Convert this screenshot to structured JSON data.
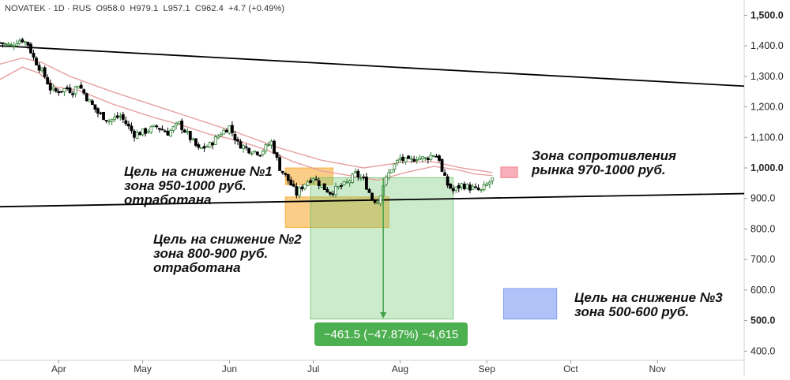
{
  "header": {
    "symbol": "NOVATEK",
    "interval": "1D",
    "exchange": "RUS",
    "open": "O958.0",
    "high": "H979.1",
    "low": "L957.1",
    "close": "C962.4",
    "change": "+4.7 (+0.49%)"
  },
  "annotations": {
    "target1": [
      "Цель на снижение №1",
      "зона 950-1000 руб.",
      "отработана"
    ],
    "target2": [
      "Цель на снижение №2",
      "зона 800-900 руб.",
      "отработана"
    ],
    "target3": [
      "Цель на снижение №3",
      "зона 500-600 руб."
    ],
    "resistance": [
      "Зона сопротивления",
      "рынка 970-1000 руб."
    ]
  },
  "measure_label": "−461.5 (−47.87%) −4,615",
  "colors": {
    "up": "#2e7d32",
    "down": "#000000",
    "ma": "#e8a0a0",
    "trend": "#000000",
    "orange_zone": "#f5a623",
    "green_zone": "#6cc46c",
    "blue_zone": "#6f8ff0",
    "red_zone": "#f07080",
    "measure": "#4caf50",
    "axis_text": "#222222",
    "month_text": "#333333"
  },
  "chart_data": {
    "type": "candlestick",
    "ylim": [
      370,
      1550
    ],
    "yticks": [
      400,
      500,
      600,
      700,
      800,
      900,
      1000,
      1100,
      1200,
      1300,
      1400,
      1500
    ],
    "ytick_labels": [
      "400.0",
      "500.0",
      "600.0",
      "700.0",
      "800.0",
      "900.0",
      "1,000.0",
      "1,100.0",
      "1,200.0",
      "1,300.0",
      "1,400.0",
      "1,500.0"
    ],
    "bold_ticks": [
      500,
      1000,
      1500
    ],
    "x_months": [
      "Apr",
      "May",
      "Jun",
      "Jul",
      "Aug",
      "Sep",
      "Oct",
      "Nov"
    ],
    "x_month_start_day": [
      21,
      51,
      82,
      112,
      143,
      174,
      204,
      235
    ],
    "x_range_days": [
      0,
      266
    ],
    "price_anchors": [
      [
        0,
        1410
      ],
      [
        4,
        1400
      ],
      [
        6,
        1415
      ],
      [
        8,
        1420
      ],
      [
        10,
        1405
      ],
      [
        12,
        1360
      ],
      [
        16,
        1300
      ],
      [
        18,
        1260
      ],
      [
        20,
        1250
      ],
      [
        24,
        1260
      ],
      [
        26,
        1250
      ],
      [
        28,
        1275
      ],
      [
        31,
        1230
      ],
      [
        35,
        1180
      ],
      [
        39,
        1155
      ],
      [
        43,
        1170
      ],
      [
        48,
        1110
      ],
      [
        52,
        1120
      ],
      [
        56,
        1135
      ],
      [
        60,
        1115
      ],
      [
        64,
        1145
      ],
      [
        67,
        1110
      ],
      [
        71,
        1060
      ],
      [
        75,
        1075
      ],
      [
        79,
        1115
      ],
      [
        82,
        1135
      ],
      [
        85,
        1080
      ],
      [
        89,
        1060
      ],
      [
        93,
        1050
      ],
      [
        97,
        1085
      ],
      [
        100,
        1000
      ],
      [
        103,
        960
      ],
      [
        106,
        915
      ],
      [
        109,
        950
      ],
      [
        112,
        970
      ],
      [
        115,
        940
      ],
      [
        118,
        920
      ],
      [
        121,
        935
      ],
      [
        124,
        950
      ],
      [
        127,
        980
      ],
      [
        130,
        960
      ],
      [
        133,
        900
      ],
      [
        135,
        890
      ],
      [
        137,
        945
      ],
      [
        140,
        1000
      ],
      [
        143,
        1030
      ],
      [
        146,
        1020
      ],
      [
        149,
        1035
      ],
      [
        152,
        1030
      ],
      [
        155,
        1045
      ],
      [
        157,
        1030
      ],
      [
        158,
        985
      ],
      [
        160,
        945
      ],
      [
        162,
        925
      ],
      [
        165,
        945
      ],
      [
        168,
        935
      ],
      [
        172,
        925
      ],
      [
        174,
        945
      ],
      [
        176,
        962
      ]
    ],
    "ma_fast": [
      [
        0,
        1290
      ],
      [
        8,
        1330
      ],
      [
        14,
        1310
      ],
      [
        20,
        1265
      ],
      [
        28,
        1255
      ],
      [
        40,
        1210
      ],
      [
        55,
        1165
      ],
      [
        65,
        1140
      ],
      [
        75,
        1110
      ],
      [
        85,
        1090
      ],
      [
        95,
        1060
      ],
      [
        105,
        1020
      ],
      [
        115,
        990
      ],
      [
        125,
        975
      ],
      [
        135,
        960
      ],
      [
        145,
        985
      ],
      [
        155,
        1005
      ],
      [
        163,
        995
      ],
      [
        170,
        980
      ],
      [
        176,
        975
      ]
    ],
    "ma_slow": [
      [
        0,
        1340
      ],
      [
        8,
        1360
      ],
      [
        15,
        1345
      ],
      [
        25,
        1300
      ],
      [
        40,
        1250
      ],
      [
        55,
        1205
      ],
      [
        70,
        1160
      ],
      [
        85,
        1115
      ],
      [
        100,
        1065
      ],
      [
        115,
        1025
      ],
      [
        130,
        1000
      ],
      [
        145,
        1020
      ],
      [
        155,
        1020
      ],
      [
        165,
        1000
      ],
      [
        176,
        985
      ]
    ],
    "trendlines": [
      {
        "name": "upper",
        "from": [
          0,
          1400
        ],
        "to": [
          266,
          1268
        ]
      },
      {
        "name": "lower",
        "from": [
          0,
          873
        ],
        "to": [
          266,
          916
        ]
      }
    ],
    "zones": [
      {
        "name": "target1-zone",
        "x": [
          102,
          119
        ],
        "y": [
          945,
          1000
        ],
        "color": "#f5a623"
      },
      {
        "name": "target2-zone",
        "x": [
          102,
          139
        ],
        "y": [
          805,
          905
        ],
        "color": "#f5a623"
      },
      {
        "name": "measure-zone",
        "x": [
          111,
          162
        ],
        "y": [
          505,
          968
        ],
        "color": "#6cc46c"
      },
      {
        "name": "target3-zone",
        "x": [
          180,
          199
        ],
        "y": [
          505,
          605
        ],
        "color": "#6f8ff0"
      },
      {
        "name": "resistance-zone",
        "x": [
          179,
          185
        ],
        "y": [
          968,
          1003
        ],
        "color": "#f07080"
      }
    ],
    "measure": {
      "from": [
        137,
        968
      ],
      "to": [
        137,
        507
      ]
    }
  }
}
